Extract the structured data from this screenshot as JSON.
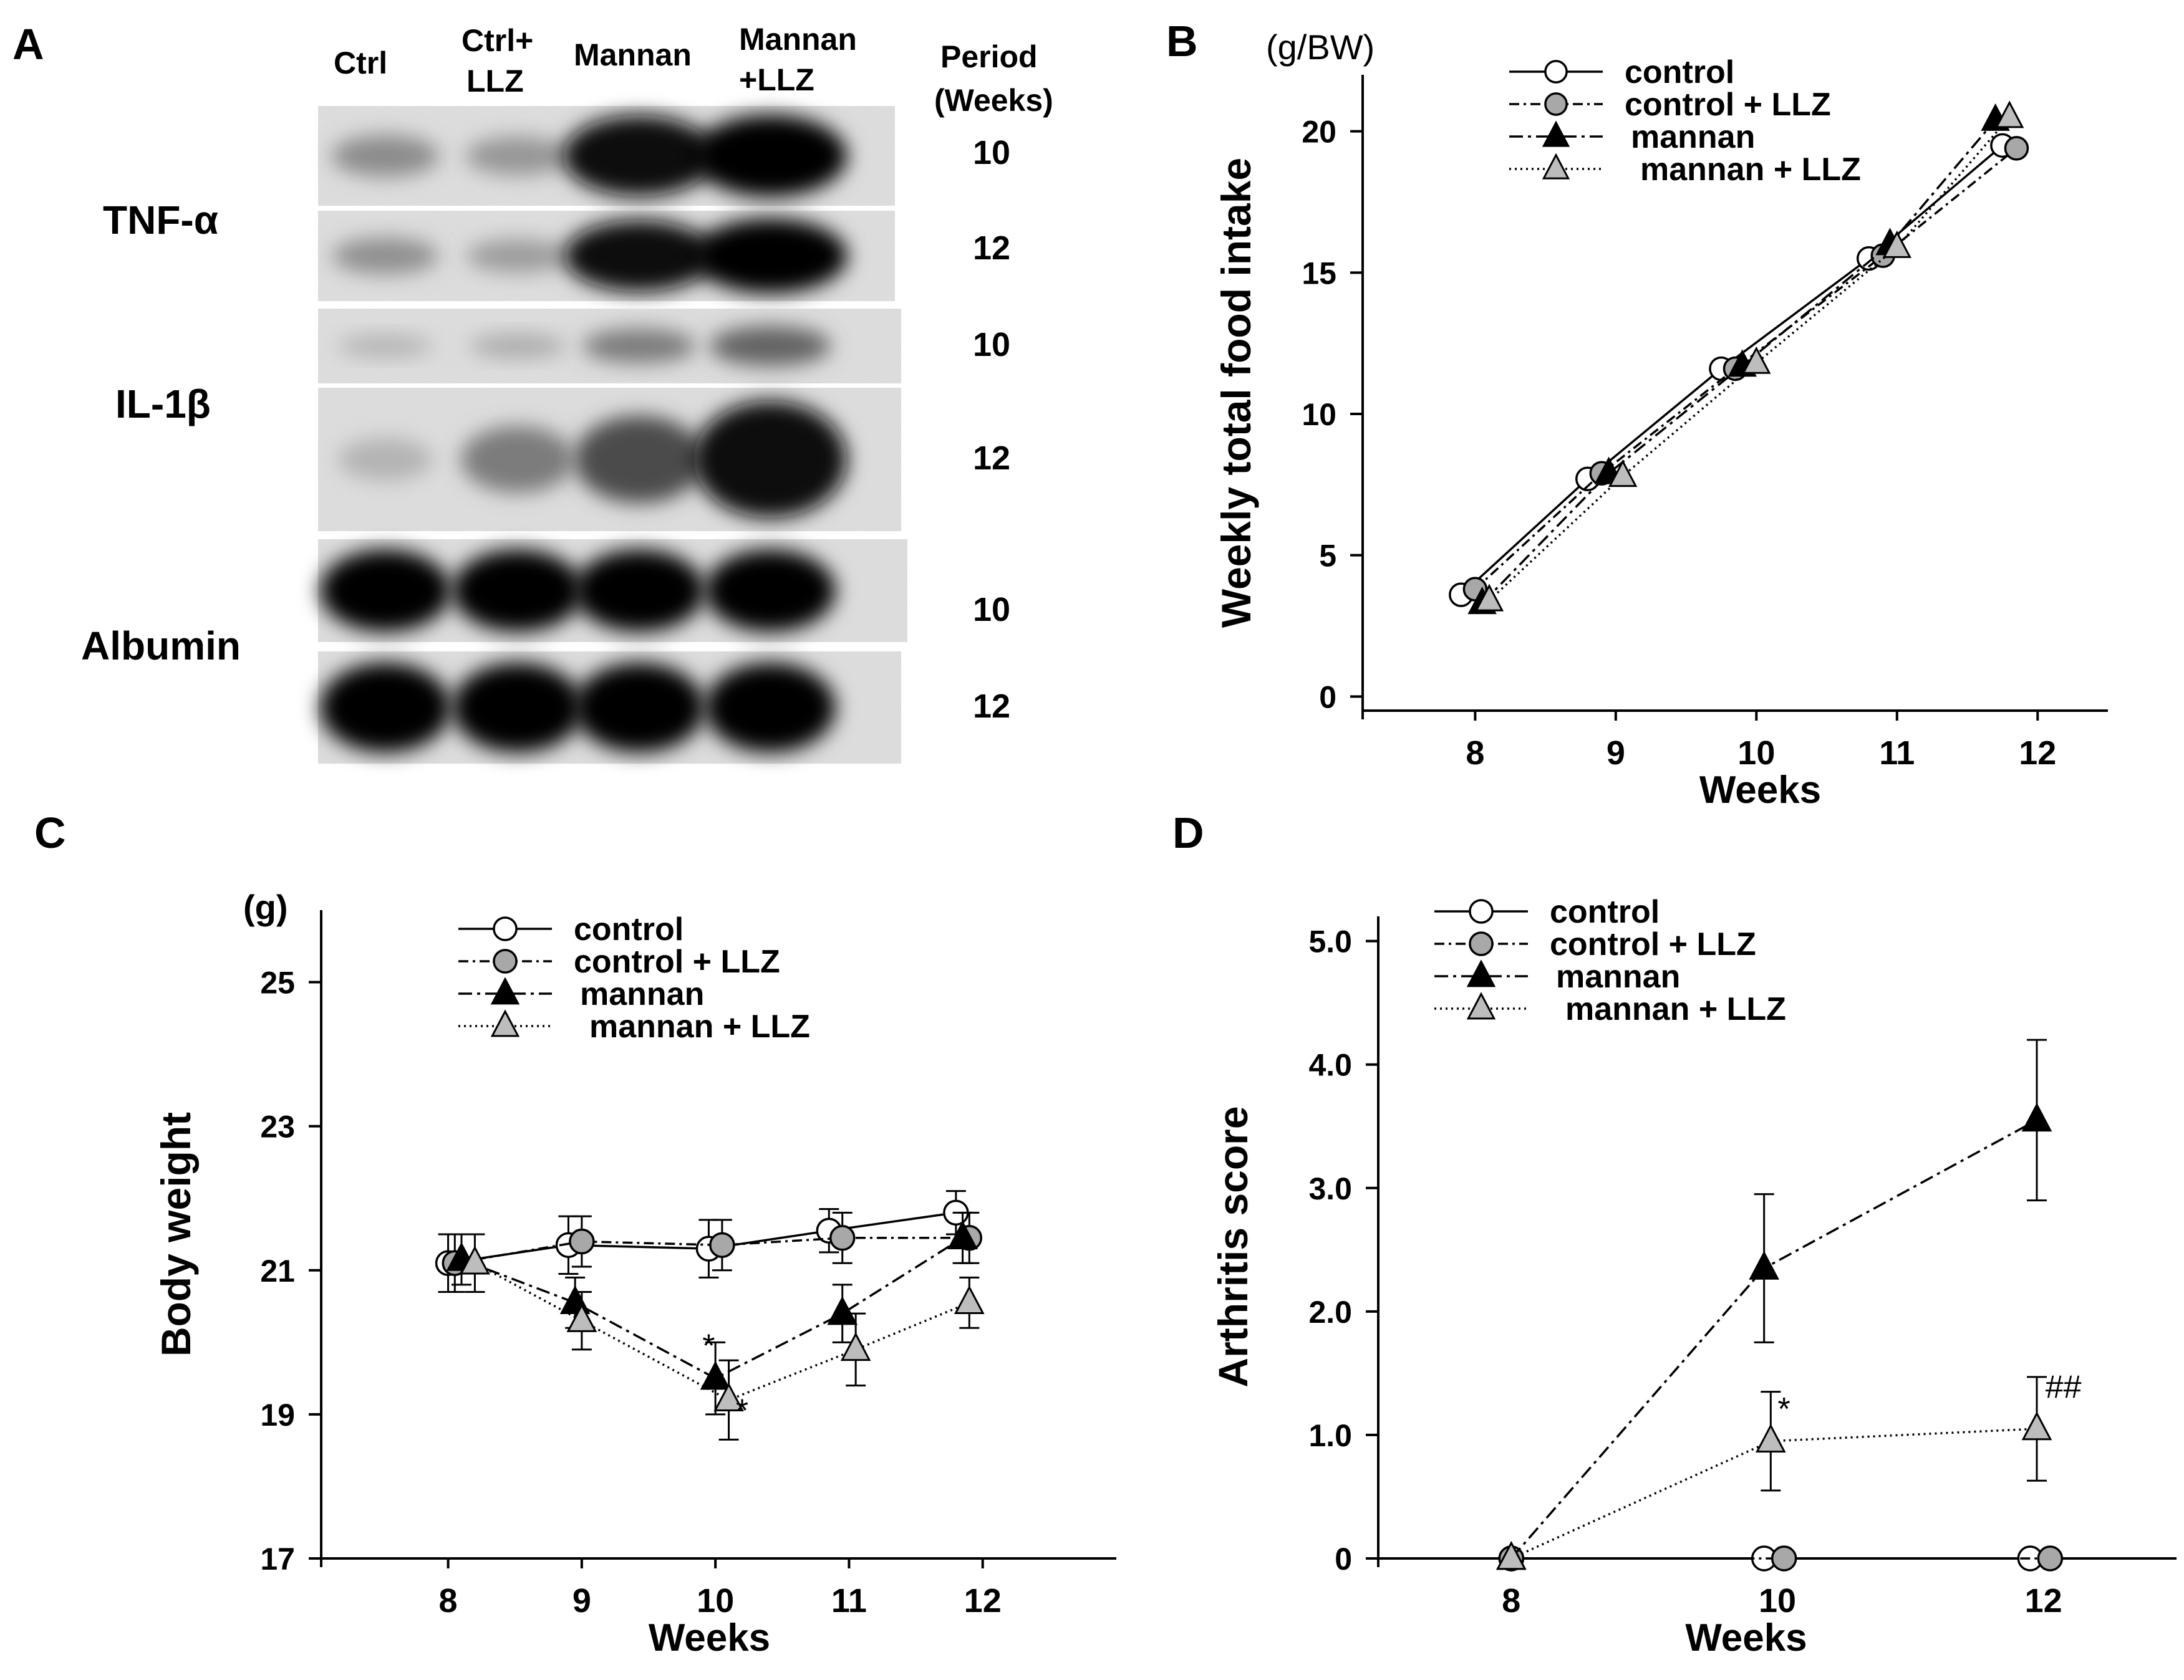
{
  "panel_labels": {
    "a": "A",
    "b": "B",
    "c": "C",
    "d": "D"
  },
  "blot": {
    "lane_labels": [
      {
        "lines": [
          "Ctrl"
        ]
      },
      {
        "lines": [
          "Ctrl+",
          "LLZ"
        ]
      },
      {
        "lines": [
          "Mannan"
        ]
      },
      {
        "lines": [
          "Mannan",
          "+LLZ"
        ]
      }
    ],
    "period_header": [
      "Period",
      "(Weeks)"
    ],
    "proteins": [
      "TNF-α",
      "IL-1β",
      "Albumin"
    ],
    "rows": [
      {
        "protein": "TNF-α",
        "period": "10",
        "intensity": [
          0.3,
          0.25,
          0.95,
          0.97
        ]
      },
      {
        "protein": "TNF-α",
        "period": "12",
        "intensity": [
          0.28,
          0.22,
          0.92,
          0.98
        ]
      },
      {
        "protein": "IL-1β",
        "period": "10",
        "intensity": [
          0.1,
          0.14,
          0.38,
          0.5
        ]
      },
      {
        "protein": "IL-1β",
        "period": "12",
        "intensity": [
          0.1,
          0.38,
          0.62,
          0.96
        ]
      },
      {
        "protein": "Albumin",
        "period": "10",
        "intensity": [
          1.0,
          1.0,
          1.0,
          1.0
        ]
      },
      {
        "protein": "Albumin",
        "period": "12",
        "intensity": [
          1.0,
          1.0,
          0.98,
          0.97
        ]
      }
    ]
  },
  "legend_labels": [
    "control",
    "control + LLZ",
    "mannan",
    "mannan + LLZ"
  ],
  "chart_data": [
    {
      "id": "B",
      "type": "line",
      "unit_label": "(g/BW)",
      "ylabel": "Weekly total food intake",
      "xlabel": "Weeks",
      "xlim": [
        7.2,
        12.5
      ],
      "ylim": [
        -0.5,
        22
      ],
      "x_ticks": [
        8,
        9,
        10,
        11,
        12
      ],
      "y_ticks": [
        0,
        5,
        10,
        15,
        20
      ],
      "series": [
        {
          "name": "control",
          "x": [
            7.9,
            8.8,
            9.75,
            10.8,
            11.75
          ],
          "y": [
            3.6,
            7.7,
            11.6,
            15.5,
            19.5
          ]
        },
        {
          "name": "control + LLZ",
          "x": [
            8.0,
            8.9,
            9.85,
            10.9,
            11.85
          ],
          "y": [
            3.8,
            7.9,
            11.6,
            15.6,
            19.4
          ]
        },
        {
          "name": "mannan",
          "x": [
            8.05,
            8.95,
            9.9,
            10.95,
            11.7
          ],
          "y": [
            3.3,
            7.9,
            11.7,
            16.0,
            20.4
          ]
        },
        {
          "name": "mannan + LLZ",
          "x": [
            8.1,
            9.05,
            10.0,
            11.0,
            11.8
          ],
          "y": [
            3.4,
            7.8,
            11.8,
            15.9,
            20.5
          ]
        }
      ]
    },
    {
      "id": "C",
      "type": "line",
      "unit_label": "(g)",
      "ylabel": "Body weight",
      "xlabel": "Weeks",
      "xlim": [
        7.05,
        13.0
      ],
      "ylim": [
        17,
        26
      ],
      "x_ticks": [
        8,
        9,
        10,
        11,
        12
      ],
      "y_ticks": [
        17,
        19,
        21,
        23,
        25
      ],
      "annotations": [
        {
          "text": "*",
          "x": 9.95,
          "y": 19.8
        },
        {
          "text": "*",
          "x": 10.2,
          "y": 18.9
        }
      ],
      "series": [
        {
          "name": "control",
          "x": [
            8.0,
            8.9,
            9.95,
            10.85,
            11.8
          ],
          "y": [
            21.1,
            21.35,
            21.3,
            21.55,
            21.8
          ],
          "err": [
            0.4,
            0.4,
            0.4,
            0.3,
            0.3
          ]
        },
        {
          "name": "control + LLZ",
          "x": [
            8.05,
            9.0,
            10.05,
            10.95,
            11.9
          ],
          "y": [
            21.1,
            21.4,
            21.35,
            21.45,
            21.45
          ],
          "err": [
            0.4,
            0.35,
            0.35,
            0.35,
            0.35
          ]
        },
        {
          "name": "mannan",
          "x": [
            8.1,
            8.95,
            10.0,
            10.95,
            11.85
          ],
          "y": [
            21.15,
            20.55,
            19.5,
            20.4,
            21.45
          ],
          "err": [
            0.35,
            0.35,
            0.5,
            0.4,
            0.35
          ]
        },
        {
          "name": "mannan + LLZ",
          "x": [
            8.2,
            9.0,
            10.1,
            11.05,
            11.9
          ],
          "y": [
            21.1,
            20.3,
            19.2,
            19.9,
            20.55
          ],
          "err": [
            0.4,
            0.4,
            0.55,
            0.5,
            0.35
          ]
        }
      ]
    },
    {
      "id": "D",
      "type": "line",
      "ylabel": "Arthritis score",
      "xlabel": "Weeks",
      "xlim": [
        7.0,
        13.0
      ],
      "ylim": [
        0,
        5.2
      ],
      "x_ticks": [
        8,
        10,
        12
      ],
      "y_ticks": [
        0,
        1.0,
        2.0,
        3.0,
        4.0,
        5.0
      ],
      "y_tick_labels": [
        "0",
        "1.0",
        "2.0",
        "3.0",
        "4.0",
        "5.0"
      ],
      "annotations": [
        {
          "text": "*",
          "x": 10.05,
          "y": 1.12
        },
        {
          "text": "##",
          "x": 12.15,
          "y": 1.3
        }
      ],
      "series": [
        {
          "name": "control",
          "x": [
            8.0,
            9.9,
            11.9
          ],
          "y": [
            0,
            0,
            0
          ],
          "err": [
            0,
            0,
            0
          ]
        },
        {
          "name": "control + LLZ",
          "x": [
            8.0,
            10.05,
            12.05
          ],
          "y": [
            0,
            0,
            0
          ],
          "err": [
            0,
            0,
            0
          ]
        },
        {
          "name": "mannan",
          "x": [
            8.0,
            9.9,
            11.95
          ],
          "y": [
            0,
            2.35,
            3.55
          ],
          "err": [
            0,
            0.6,
            0.65
          ]
        },
        {
          "name": "mannan + LLZ",
          "x": [
            8.0,
            9.95,
            11.95
          ],
          "y": [
            0,
            0.95,
            1.05
          ],
          "err": [
            0,
            0.4,
            0.42
          ]
        }
      ]
    }
  ]
}
